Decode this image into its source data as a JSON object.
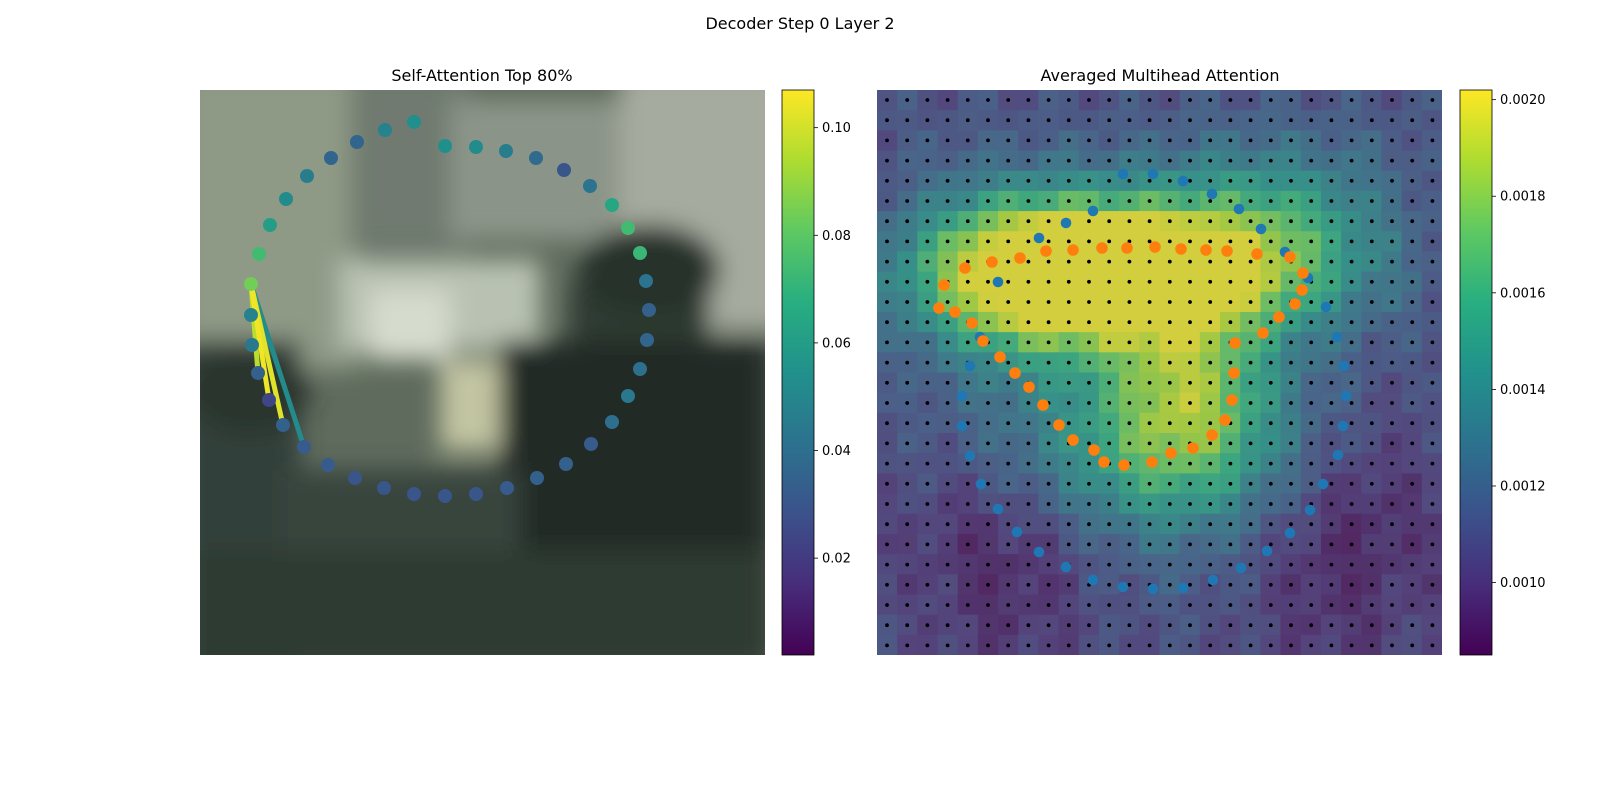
{
  "figure": {
    "suptitle": "Decoder Step 0 Layer 2"
  },
  "chart_data": [
    {
      "type": "scatter",
      "title": "Self-Attention Top 80%",
      "background": "blurred photo of an office scene with a person at right",
      "colormap": "viridis",
      "colorbar": {
        "min": 0.002,
        "max": 0.107,
        "ticks": [
          0.02,
          0.04,
          0.06,
          0.08,
          0.1
        ],
        "tick_labels": [
          "0.02",
          "0.04",
          "0.06",
          "0.08",
          "0.10"
        ]
      },
      "contour_points": [
        {
          "x": 245,
          "y": 56,
          "v": 0.054
        },
        {
          "x": 276,
          "y": 57,
          "v": 0.052
        },
        {
          "x": 306,
          "y": 61,
          "v": 0.046
        },
        {
          "x": 336,
          "y": 68,
          "v": 0.038
        },
        {
          "x": 364,
          "y": 80,
          "v": 0.03
        },
        {
          "x": 390,
          "y": 96,
          "v": 0.042
        },
        {
          "x": 412,
          "y": 115,
          "v": 0.064
        },
        {
          "x": 428,
          "y": 138,
          "v": 0.074
        },
        {
          "x": 440,
          "y": 163,
          "v": 0.072
        },
        {
          "x": 446,
          "y": 191,
          "v": 0.042
        },
        {
          "x": 449,
          "y": 220,
          "v": 0.034
        },
        {
          "x": 447,
          "y": 250,
          "v": 0.036
        },
        {
          "x": 440,
          "y": 279,
          "v": 0.04
        },
        {
          "x": 428,
          "y": 306,
          "v": 0.044
        },
        {
          "x": 412,
          "y": 332,
          "v": 0.04
        },
        {
          "x": 391,
          "y": 354,
          "v": 0.032
        },
        {
          "x": 366,
          "y": 374,
          "v": 0.034
        },
        {
          "x": 337,
          "y": 388,
          "v": 0.034
        },
        {
          "x": 307,
          "y": 398,
          "v": 0.032
        },
        {
          "x": 276,
          "y": 404,
          "v": 0.03
        },
        {
          "x": 245,
          "y": 406,
          "v": 0.03
        },
        {
          "x": 214,
          "y": 404,
          "v": 0.03
        },
        {
          "x": 184,
          "y": 398,
          "v": 0.03
        },
        {
          "x": 155,
          "y": 388,
          "v": 0.03
        },
        {
          "x": 128,
          "y": 375,
          "v": 0.032
        },
        {
          "x": 104,
          "y": 357,
          "v": 0.032
        },
        {
          "x": 83,
          "y": 335,
          "v": 0.034
        },
        {
          "x": 69,
          "y": 310,
          "v": 0.024
        },
        {
          "x": 58,
          "y": 283,
          "v": 0.034
        },
        {
          "x": 52,
          "y": 255,
          "v": 0.044
        },
        {
          "x": 51,
          "y": 225,
          "v": 0.048
        },
        {
          "x": 51,
          "y": 194,
          "v": 0.084
        },
        {
          "x": 59,
          "y": 164,
          "v": 0.074
        },
        {
          "x": 70,
          "y": 135,
          "v": 0.06
        },
        {
          "x": 86,
          "y": 109,
          "v": 0.052
        },
        {
          "x": 107,
          "y": 86,
          "v": 0.046
        },
        {
          "x": 131,
          "y": 68,
          "v": 0.036
        },
        {
          "x": 157,
          "y": 52,
          "v": 0.036
        },
        {
          "x": 185,
          "y": 40,
          "v": 0.048
        },
        {
          "x": 214,
          "y": 32,
          "v": 0.054
        }
      ],
      "attention_edges": [
        {
          "from": 31,
          "to": 27,
          "v": 0.105
        },
        {
          "from": 31,
          "to": 26,
          "v": 0.102
        },
        {
          "from": 31,
          "to": 28,
          "v": 0.096
        },
        {
          "from": 31,
          "to": 25,
          "v": 0.052
        }
      ]
    },
    {
      "type": "heatmap",
      "title": "Averaged Multihead Attention",
      "colormap": "viridis",
      "grid": {
        "rows": 28,
        "cols": 28
      },
      "colorbar": {
        "min": 0.00085,
        "max": 0.00202,
        "ticks": [
          0.001,
          0.0012,
          0.0014,
          0.0016,
          0.0018,
          0.002
        ],
        "tick_labels": [
          "0.0010",
          "0.0012",
          "0.0014",
          "0.0016",
          "0.0018",
          "0.0020"
        ]
      },
      "outer_contour_color": "#1f77b4",
      "inner_contour_color": "#ff7f0e",
      "outer_contour": [
        {
          "x": 246,
          "y": 84
        },
        {
          "x": 276,
          "y": 84
        },
        {
          "x": 306,
          "y": 91
        },
        {
          "x": 335,
          "y": 104
        },
        {
          "x": 362,
          "y": 119
        },
        {
          "x": 384,
          "y": 139
        },
        {
          "x": 408,
          "y": 162
        },
        {
          "x": 431,
          "y": 188
        },
        {
          "x": 449,
          "y": 217
        },
        {
          "x": 460,
          "y": 247
        },
        {
          "x": 467,
          "y": 276
        },
        {
          "x": 469,
          "y": 306
        },
        {
          "x": 466,
          "y": 336
        },
        {
          "x": 461,
          "y": 365
        },
        {
          "x": 446,
          "y": 394
        },
        {
          "x": 433,
          "y": 420
        },
        {
          "x": 413,
          "y": 443
        },
        {
          "x": 390,
          "y": 461
        },
        {
          "x": 364,
          "y": 478
        },
        {
          "x": 336,
          "y": 490
        },
        {
          "x": 306,
          "y": 498
        },
        {
          "x": 276,
          "y": 499
        },
        {
          "x": 246,
          "y": 497
        },
        {
          "x": 216,
          "y": 490
        },
        {
          "x": 189,
          "y": 477
        },
        {
          "x": 162,
          "y": 462
        },
        {
          "x": 140,
          "y": 442
        },
        {
          "x": 121,
          "y": 419
        },
        {
          "x": 104,
          "y": 394
        },
        {
          "x": 93,
          "y": 366
        },
        {
          "x": 85,
          "y": 336
        },
        {
          "x": 85,
          "y": 306
        },
        {
          "x": 93,
          "y": 276
        },
        {
          "x": 103,
          "y": 247
        },
        {
          "x": 121,
          "y": 192
        },
        {
          "x": 162,
          "y": 148
        },
        {
          "x": 189,
          "y": 133
        },
        {
          "x": 216,
          "y": 121
        }
      ],
      "inner_contour": [
        {
          "x": 278,
          "y": 157
        },
        {
          "x": 250,
          "y": 158
        },
        {
          "x": 225,
          "y": 158
        },
        {
          "x": 196,
          "y": 160
        },
        {
          "x": 169,
          "y": 161
        },
        {
          "x": 143,
          "y": 168
        },
        {
          "x": 115,
          "y": 172
        },
        {
          "x": 88,
          "y": 178
        },
        {
          "x": 67,
          "y": 195
        },
        {
          "x": 62,
          "y": 218
        },
        {
          "x": 78,
          "y": 222
        },
        {
          "x": 95,
          "y": 233
        },
        {
          "x": 106,
          "y": 251
        },
        {
          "x": 123,
          "y": 267
        },
        {
          "x": 138,
          "y": 283
        },
        {
          "x": 152,
          "y": 297
        },
        {
          "x": 166,
          "y": 315
        },
        {
          "x": 182,
          "y": 335
        },
        {
          "x": 196,
          "y": 350
        },
        {
          "x": 217,
          "y": 360
        },
        {
          "x": 227,
          "y": 372
        },
        {
          "x": 247,
          "y": 375
        },
        {
          "x": 275,
          "y": 372
        },
        {
          "x": 294,
          "y": 363
        },
        {
          "x": 316,
          "y": 358
        },
        {
          "x": 335,
          "y": 345
        },
        {
          "x": 348,
          "y": 330
        },
        {
          "x": 355,
          "y": 310
        },
        {
          "x": 357,
          "y": 283
        },
        {
          "x": 358,
          "y": 253
        },
        {
          "x": 386,
          "y": 243
        },
        {
          "x": 402,
          "y": 227
        },
        {
          "x": 418,
          "y": 214
        },
        {
          "x": 425,
          "y": 200
        },
        {
          "x": 426,
          "y": 183
        },
        {
          "x": 413,
          "y": 167
        },
        {
          "x": 380,
          "y": 164
        },
        {
          "x": 350,
          "y": 161
        },
        {
          "x": 329,
          "y": 160
        },
        {
          "x": 304,
          "y": 159
        }
      ]
    }
  ]
}
